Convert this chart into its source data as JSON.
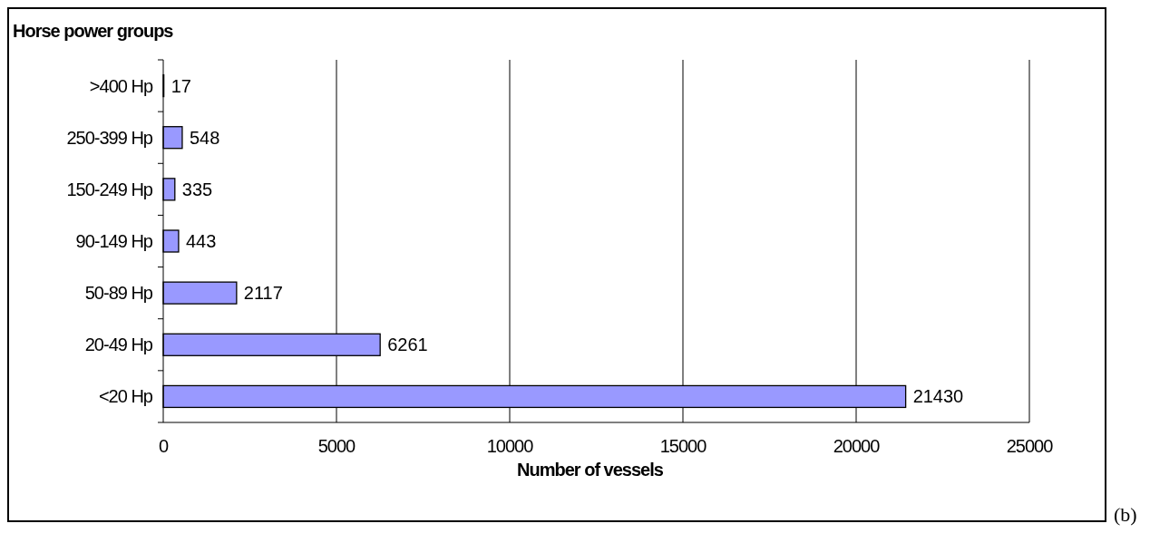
{
  "chart_data": {
    "type": "bar",
    "orientation": "horizontal",
    "ylabel": "Horse power groups",
    "xlabel": "Number of vessels",
    "categories": [
      ">400 Hp",
      "250-399 Hp",
      "150-249 Hp",
      "90-149 Hp",
      "50-89 Hp",
      "20-49 Hp",
      "<20 Hp"
    ],
    "values": [
      17,
      548,
      335,
      443,
      2117,
      6261,
      21430
    ],
    "color": "#9999ff",
    "xlim": [
      0,
      25000
    ],
    "xticks": [
      0,
      5000,
      10000,
      15000,
      20000,
      25000
    ],
    "grid": "x",
    "data_labels": true,
    "annotations": [
      "(b)"
    ]
  }
}
